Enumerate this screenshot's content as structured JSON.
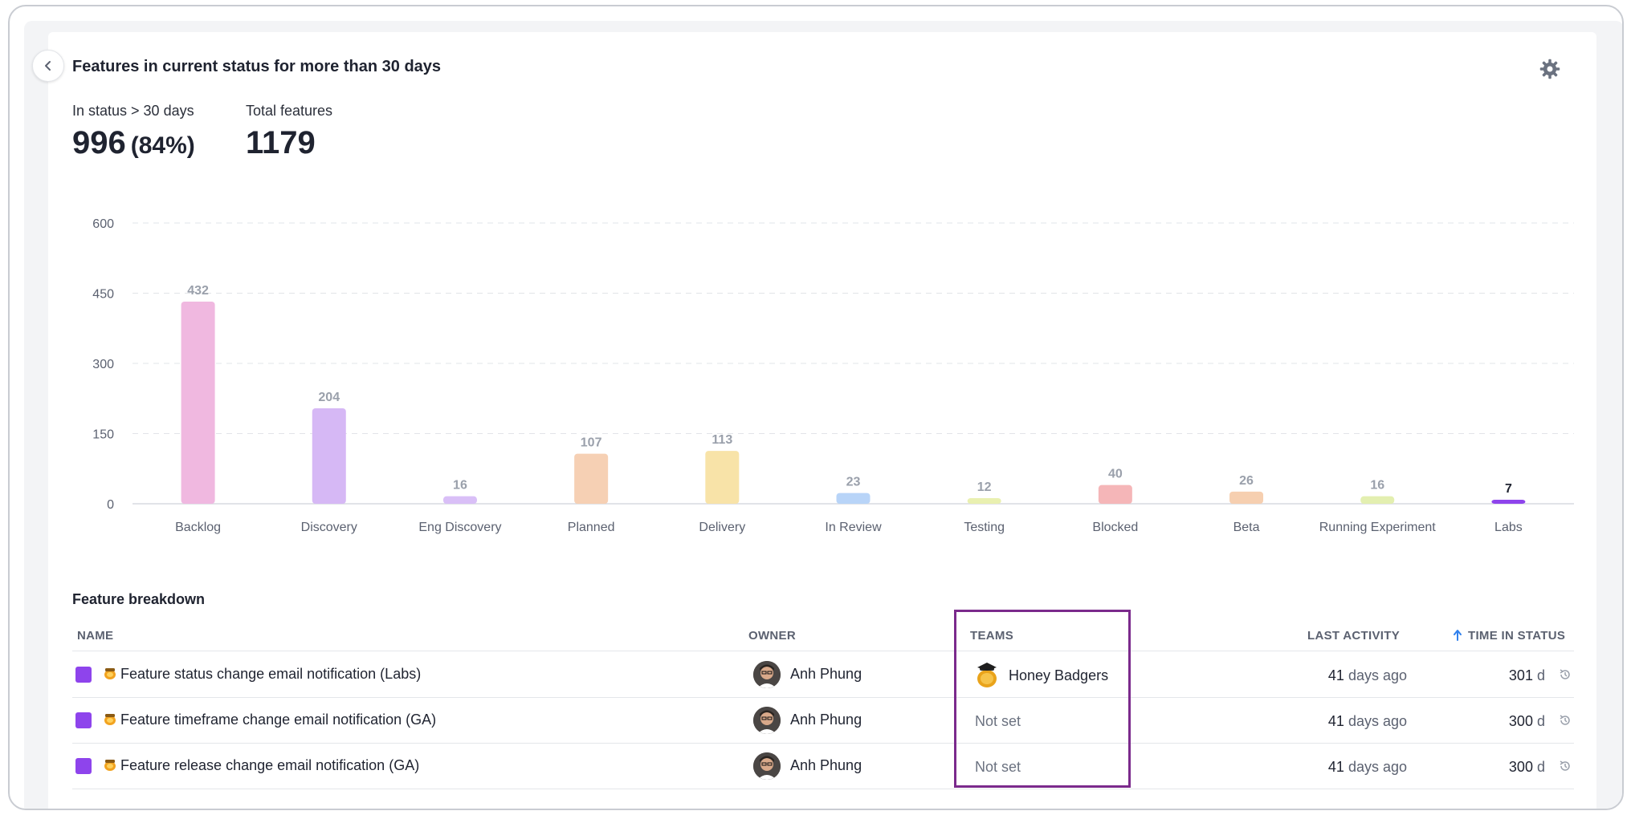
{
  "header": {
    "title": "Features in current status for more than 30 days"
  },
  "stats": {
    "in_status_label": "In status > 30 days",
    "in_status_value": "996",
    "in_status_pct": "(84%)",
    "total_label": "Total features",
    "total_value": "1179"
  },
  "chart_data": {
    "type": "bar",
    "categories": [
      "Backlog",
      "Discovery",
      "Eng Discovery",
      "Planned",
      "Delivery",
      "In Review",
      "Testing",
      "Blocked",
      "Beta",
      "Running Experiment",
      "Labs"
    ],
    "values": [
      432,
      204,
      16,
      107,
      113,
      23,
      12,
      40,
      26,
      16,
      7
    ],
    "colors": [
      "#f0b8e0",
      "#d6b8f5",
      "#d9bff7",
      "#f6d0b4",
      "#f8e3a8",
      "#b8d4f8",
      "#e9f0b0",
      "#f5b6b8",
      "#f6cfb0",
      "#e3efb0",
      "#8e44ec"
    ],
    "highlight_index": 10,
    "yticks": [
      0,
      150,
      300,
      450,
      600
    ],
    "ylim": [
      0,
      600
    ],
    "grid": true
  },
  "table": {
    "title": "Feature breakdown",
    "headers": {
      "name": "NAME",
      "owner": "OWNER",
      "teams": "TEAMS",
      "last_activity": "LAST ACTIVITY",
      "time_in_status": "TIME IN STATUS"
    },
    "rows": [
      {
        "name": "Feature status change email notification (Labs)",
        "owner": "Anh Phung",
        "team": "Honey Badgers",
        "team_set": true,
        "activity_num": "41",
        "activity_text": "days ago",
        "time": "301",
        "unit": "d"
      },
      {
        "name": "Feature timeframe change email notification (GA)",
        "owner": "Anh Phung",
        "team": "Not set",
        "team_set": false,
        "activity_num": "41",
        "activity_text": "days ago",
        "time": "300",
        "unit": "d"
      },
      {
        "name": "Feature release change email notification (GA)",
        "owner": "Anh Phung",
        "team": "Not set",
        "team_set": false,
        "activity_num": "41",
        "activity_text": "days ago",
        "time": "300",
        "unit": "d"
      }
    ]
  },
  "icons": {
    "back": "chevron-left-icon",
    "settings": "gear-icon",
    "feature_type": "honey-pot-icon",
    "sort": "arrow-up-icon",
    "history": "history-icon"
  },
  "colors": {
    "feature_square": "#8e44ec",
    "highlight_box": "#7b2a8c",
    "sort_arrow": "#2f80ed"
  }
}
